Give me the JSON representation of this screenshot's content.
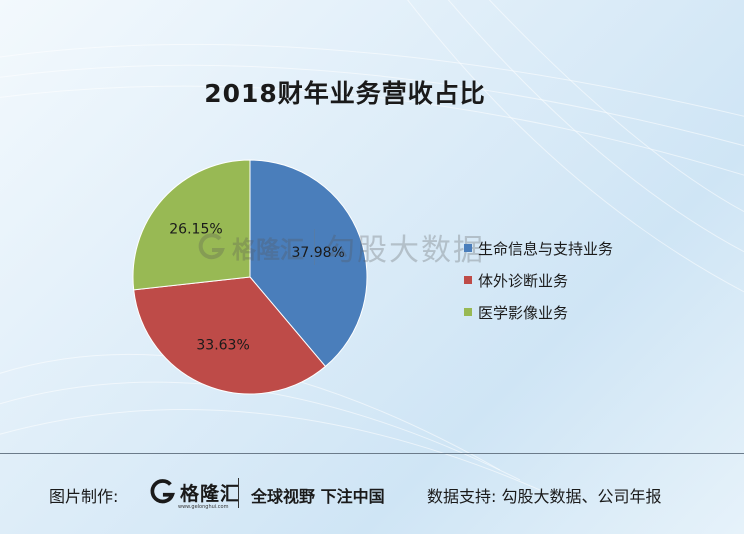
{
  "chart_data": {
    "type": "pie",
    "title": "2018财年业务营收占比",
    "categories": [
      "生命信息与支持业务",
      "体外诊断业务",
      "医学影像业务"
    ],
    "values": [
      37.98,
      33.63,
      26.15
    ],
    "labels": [
      "37.98%",
      "33.63%",
      "26.15%"
    ],
    "colors": [
      "#4a7ebb",
      "#be4b48",
      "#98b954"
    ],
    "legend_position": "right"
  },
  "watermark": {
    "brand": "格隆汇",
    "brand_url": "www.gelonghui.com",
    "partner": "勾股大数据"
  },
  "footer": {
    "made_by_label": "图片制作:",
    "logo_name": "格隆汇",
    "logo_url": "www.gelonghui.com",
    "slogan": "全球视野 下注中国",
    "source": "数据支持: 勾股大数据、公司年报"
  },
  "colors": {
    "footer_line": "#6b7b8a"
  }
}
